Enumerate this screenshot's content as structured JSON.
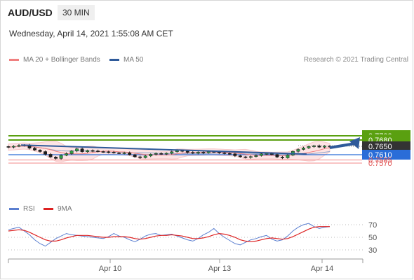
{
  "header": {
    "symbol": "AUD/USD",
    "timeframe": "30 MIN",
    "datetime": "Wednesday, April 14, 2021 1:55:08 AM CET"
  },
  "legend": {
    "ma20_label": "MA 20 + Bollinger Bands",
    "ma20_color": "#f08080",
    "ma50_label": "MA 50",
    "ma50_color": "#2f5a9a"
  },
  "credit": "Research © 2021 Trading Central",
  "rsi_legend": {
    "rsi_label": "RSI",
    "rsi_color": "#5b7fd0",
    "ma_label": "9MA",
    "ma_color": "#dd2222"
  },
  "chart_data": {
    "type": "candlestick",
    "price_axis_range": [
      0.7562,
      0.7712
    ],
    "x_ticks": [
      "Apr 10",
      "Apr 13",
      "Apr 14"
    ],
    "levels": [
      {
        "label": "0.7700",
        "value": 0.77,
        "kind": "target",
        "color": "#5aa010"
      },
      {
        "label": "0.7680",
        "value": 0.768,
        "kind": "target",
        "color": "#5aa010"
      },
      {
        "label": "0.7650",
        "value": 0.765,
        "kind": "current",
        "color": "#333333"
      },
      {
        "label": "0.7610",
        "value": 0.761,
        "kind": "pivot",
        "color": "#2a6dd8"
      },
      {
        "label": "0.7585",
        "value": 0.7585,
        "kind": "support",
        "color": "#e05555"
      },
      {
        "label": "0.7570",
        "value": 0.757,
        "kind": "support",
        "color": "#e05555"
      }
    ],
    "trendline": {
      "from": 0.7656,
      "to": 0.7613
    },
    "forecast_arrow": {
      "from": 0.765,
      "to": 0.77
    },
    "closes": [
      0.7646,
      0.765,
      0.7654,
      0.7656,
      0.7641,
      0.7632,
      0.7625,
      0.7612,
      0.7599,
      0.7592,
      0.7607,
      0.7615,
      0.7628,
      0.7638,
      0.7624,
      0.763,
      0.7628,
      0.7625,
      0.7624,
      0.7622,
      0.7619,
      0.7618,
      0.7619,
      0.761,
      0.76,
      0.7596,
      0.7604,
      0.7612,
      0.7616,
      0.7613,
      0.7617,
      0.7624,
      0.763,
      0.7627,
      0.7621,
      0.7617,
      0.7622,
      0.7619,
      0.7625,
      0.7624,
      0.7619,
      0.7616,
      0.7614,
      0.7605,
      0.76,
      0.7597,
      0.7601,
      0.7606,
      0.7614,
      0.7616,
      0.7611,
      0.7599,
      0.7595,
      0.7608,
      0.7626,
      0.7635,
      0.7642,
      0.7649,
      0.7652,
      0.7646,
      0.7651,
      0.7649
    ],
    "rsi": {
      "axis_ticks": [
        70,
        50,
        30
      ],
      "range": [
        20,
        80
      ],
      "rsi_values": [
        62,
        64,
        66,
        60,
        54,
        46,
        40,
        36,
        42,
        48,
        52,
        56,
        54,
        53,
        52,
        51,
        50,
        49,
        48,
        51,
        56,
        52,
        50,
        46,
        43,
        47,
        52,
        55,
        56,
        53,
        54,
        55,
        52,
        49,
        46,
        44,
        48,
        54,
        58,
        64,
        56,
        50,
        45,
        40,
        38,
        42,
        46,
        48,
        51,
        53,
        47,
        44,
        46,
        52,
        60,
        66,
        70,
        72,
        67,
        64,
        66,
        67
      ],
      "ma_values": [
        60,
        61,
        62,
        61,
        58,
        54,
        50,
        46,
        44,
        44,
        46,
        49,
        51,
        53,
        53,
        53,
        52,
        51,
        50,
        50,
        51,
        51,
        51,
        50,
        48,
        47,
        48,
        50,
        52,
        53,
        53,
        54,
        53,
        52,
        50,
        48,
        48,
        49,
        51,
        54,
        56,
        55,
        53,
        50,
        46,
        44,
        43,
        44,
        46,
        48,
        49,
        48,
        47,
        48,
        51,
        55,
        59,
        63,
        66,
        67,
        67,
        67
      ]
    }
  }
}
